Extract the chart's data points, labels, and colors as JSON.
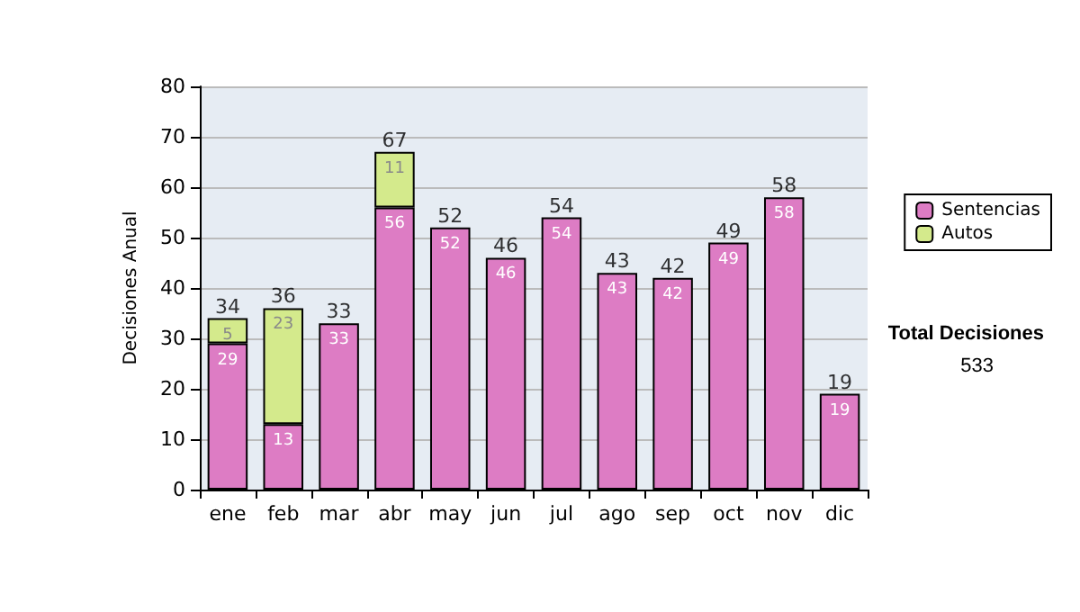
{
  "chart_data": {
    "type": "bar",
    "stacked": true,
    "ylabel": "Decisiones Anual",
    "categories": [
      "ene",
      "feb",
      "mar",
      "abr",
      "may",
      "jun",
      "jul",
      "ago",
      "sep",
      "oct",
      "nov",
      "dic"
    ],
    "series": [
      {
        "name": "Sentencias",
        "color": "#dd7cc4",
        "values": [
          29,
          13,
          33,
          56,
          52,
          46,
          54,
          43,
          42,
          49,
          58,
          19
        ]
      },
      {
        "name": "Autos",
        "color": "#d4ea8c",
        "values": [
          5,
          23,
          null,
          11,
          null,
          null,
          null,
          null,
          null,
          null,
          null,
          null
        ]
      }
    ],
    "totals": [
      "34",
      "36",
      "33",
      "67",
      "52",
      "46",
      "54",
      "43",
      "42",
      "49",
      "58",
      "19"
    ],
    "ylim": [
      0,
      80
    ],
    "yticks": [
      0,
      10,
      20,
      30,
      40,
      50,
      60,
      70,
      80
    ],
    "grid": "y",
    "data_labels": true,
    "legend": "right",
    "annotations": [
      "Total Decisiones",
      "533"
    ]
  }
}
